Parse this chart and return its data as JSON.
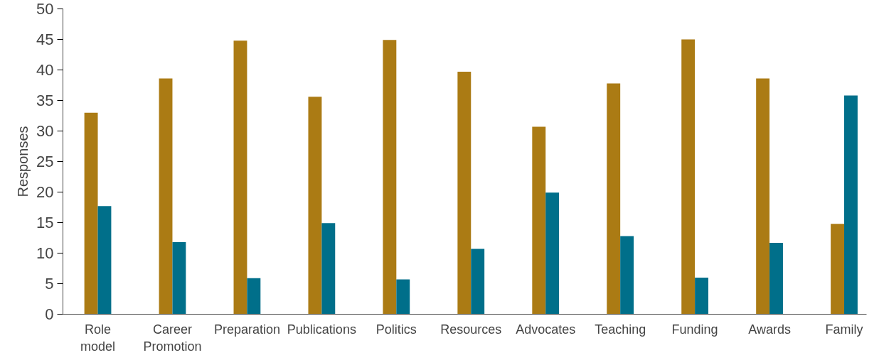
{
  "chart_data": {
    "type": "bar",
    "ylabel": "Responses",
    "categories": [
      "Role\nmodel",
      "Career\nPromotion",
      "Preparation",
      "Publications",
      "Politics",
      "Resources",
      "Advocates",
      "Teaching",
      "Funding",
      "Awards",
      "Family"
    ],
    "series": [
      {
        "color": "#ab7b14",
        "values": [
          33,
          38.6,
          44.8,
          35.6,
          44.9,
          39.7,
          30.7,
          37.8,
          45,
          38.6,
          14.8
        ]
      },
      {
        "color": "#006f8a",
        "values": [
          17.7,
          11.8,
          5.9,
          14.9,
          5.7,
          10.7,
          19.9,
          12.8,
          6,
          11.7,
          35.8
        ]
      }
    ],
    "ylim": [
      0,
      50
    ],
    "yticks": [
      0,
      5,
      10,
      15,
      20,
      25,
      30,
      35,
      40,
      45,
      50
    ],
    "grid": false
  }
}
